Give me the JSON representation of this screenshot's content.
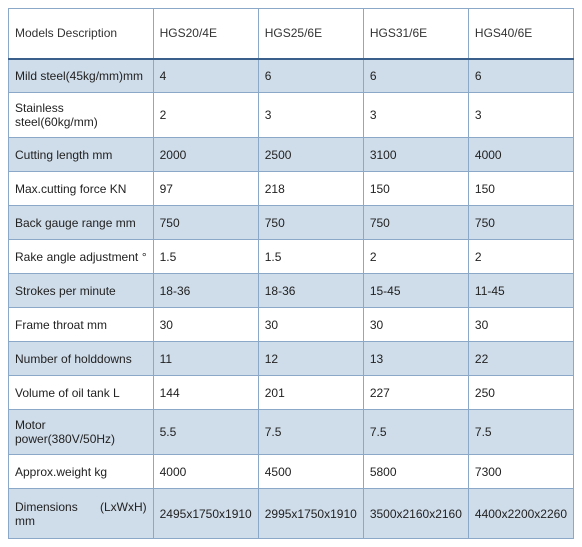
{
  "table": {
    "header_label": "Models  Description",
    "models": [
      "HGS20/4E",
      "HGS25/6E",
      "HGS31/6E",
      "HGS40/6E"
    ],
    "rows": [
      {
        "label": "Mild steel(45kg/mm)mm",
        "values": [
          "4",
          "6",
          "6",
          "6"
        ]
      },
      {
        "label": "Stainless steel(60kg/mm)",
        "values": [
          "2",
          "3",
          "3",
          "3"
        ]
      },
      {
        "label": "Cutting length mm",
        "values": [
          "2000",
          "2500",
          "3100",
          "4000"
        ]
      },
      {
        "label": "Max.cutting force KN",
        "values": [
          "97",
          "218",
          "150",
          "150"
        ]
      },
      {
        "label": "Back gauge range mm",
        "values": [
          "750",
          "750",
          "750",
          "750"
        ]
      },
      {
        "label": "Rake angle adjustment °",
        "values": [
          "1.5",
          "1.5",
          "2",
          "2"
        ],
        "justify": true
      },
      {
        "label": "Strokes per minute",
        "values": [
          "18-36",
          "18-36",
          "15-45",
          "11-45"
        ]
      },
      {
        "label": "Frame throat mm",
        "values": [
          "30",
          "30",
          "30",
          "30"
        ]
      },
      {
        "label": "Number of holddowns",
        "values": [
          "11",
          "12",
          "13",
          "22"
        ]
      },
      {
        "label": "Volume of oil tank L",
        "values": [
          "144",
          "201",
          "227",
          "250"
        ]
      },
      {
        "label": "Motor power(380V/50Hz)",
        "values": [
          "5.5",
          "7.5",
          "7.5",
          "7.5"
        ]
      },
      {
        "label": "Approx.weight kg",
        "values": [
          "4000",
          "4500",
          "5800",
          "7300"
        ]
      },
      {
        "label": "Dimensions (LxWxH) mm",
        "values": [
          "2495x1750x1910",
          "2995x1750x1910",
          "3500x2160x2160",
          "4400x2200x2260"
        ],
        "justify": true
      }
    ],
    "colors": {
      "border": "#8ba8c8",
      "header_border_bottom": "#3a5f8a",
      "odd_row_bg": "#cfdce9",
      "even_row_bg": "#ffffff",
      "text": "#222"
    },
    "font_size": 12
  }
}
